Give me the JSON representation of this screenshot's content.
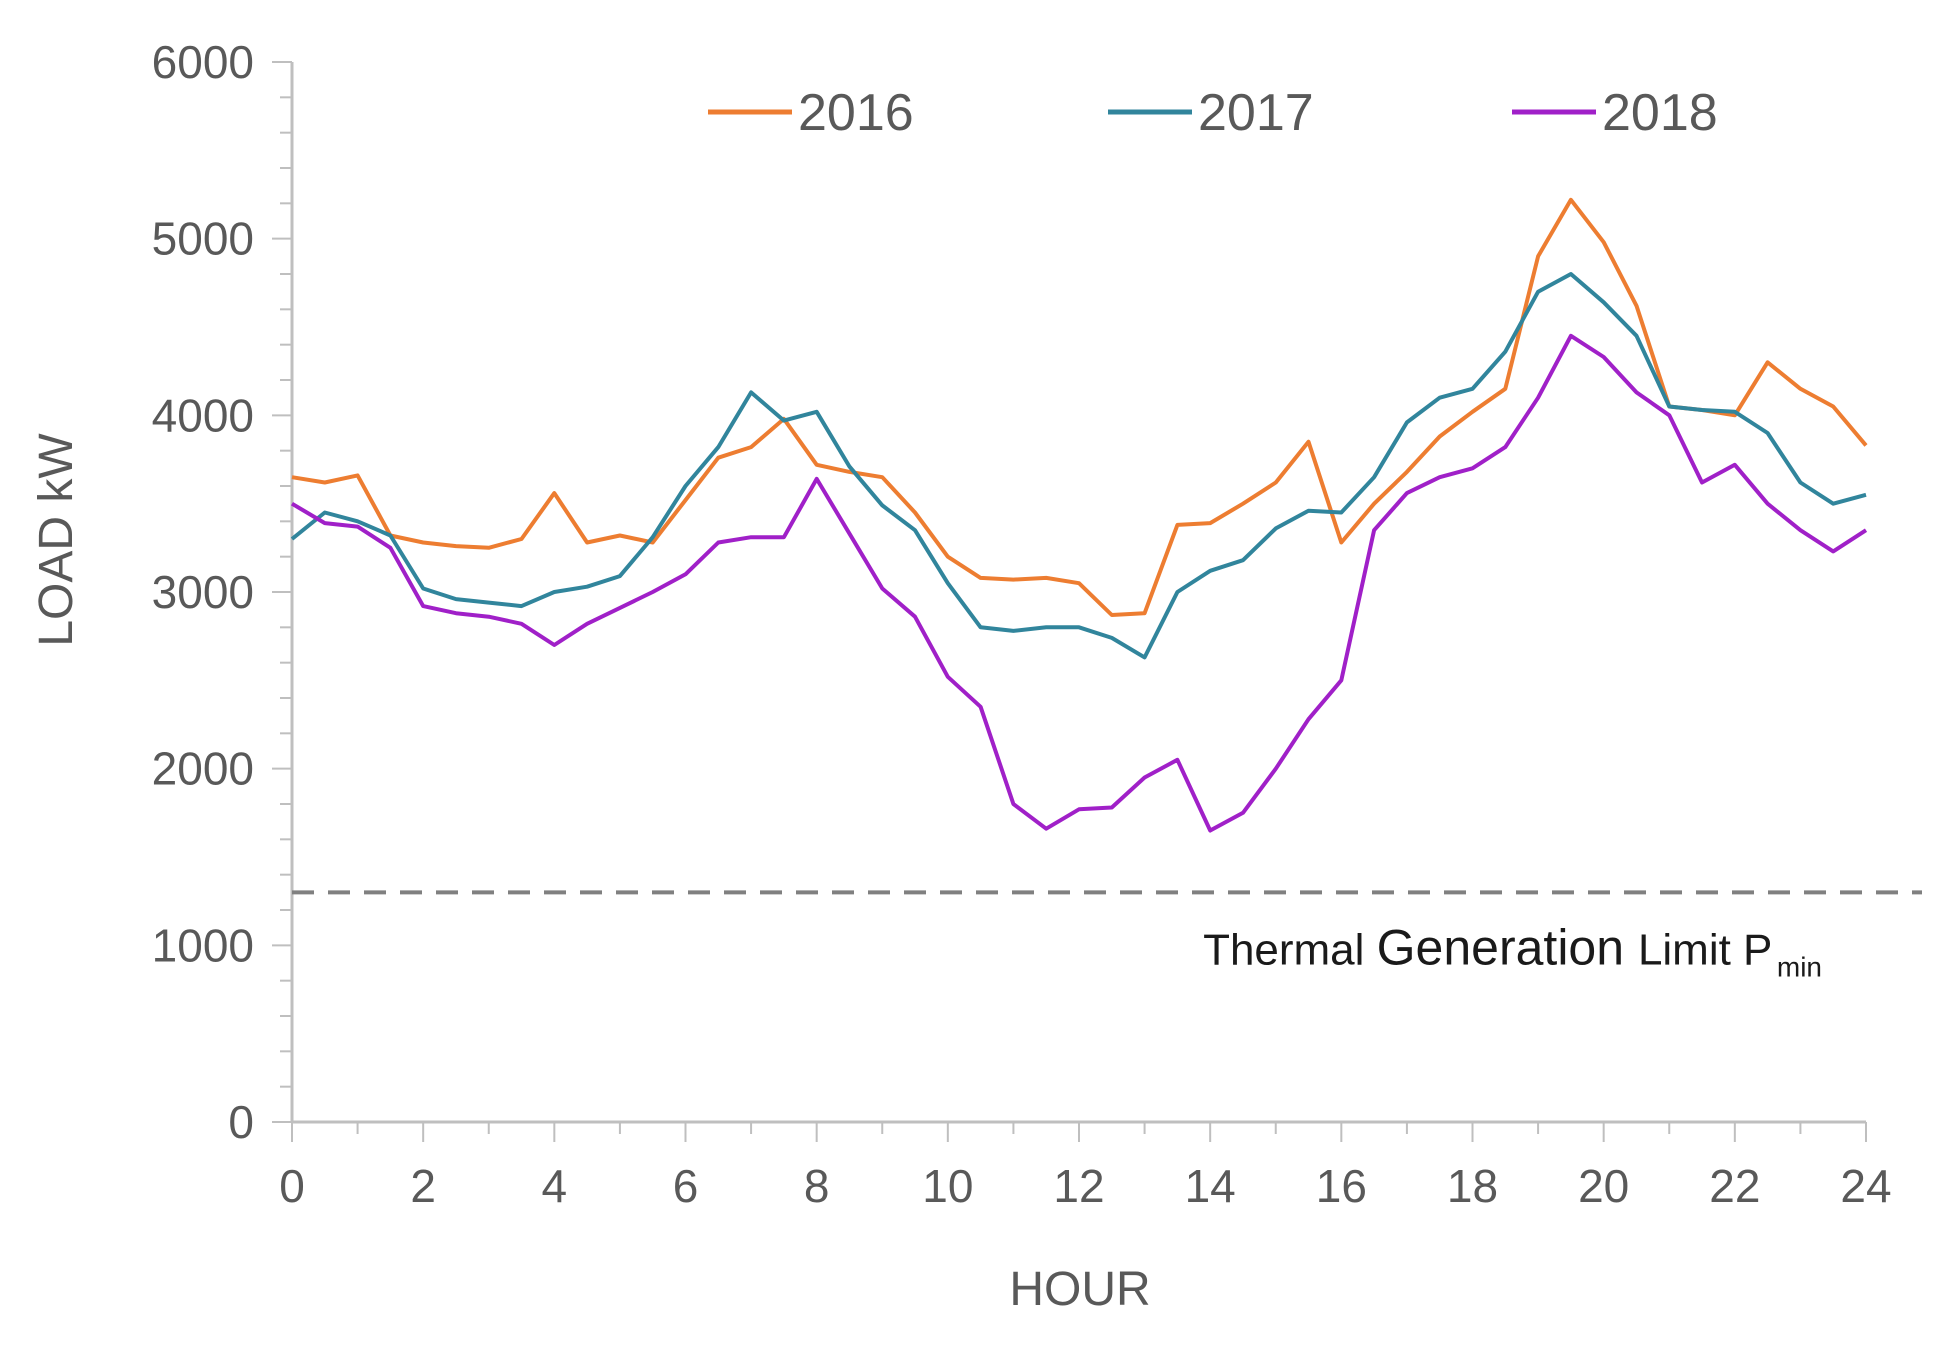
{
  "chart_data": {
    "type": "line",
    "title": "",
    "xlabel": "HOUR",
    "ylabel": "LOAD kW",
    "xlim": [
      0,
      24
    ],
    "ylim": [
      0,
      6000
    ],
    "x_ticks": [
      "0",
      "2",
      "4",
      "6",
      "8",
      "10",
      "12",
      "14",
      "16",
      "18",
      "20",
      "22",
      "24"
    ],
    "y_ticks": [
      "0",
      "1000",
      "2000",
      "3000",
      "4000",
      "5000",
      "6000"
    ],
    "grid": false,
    "legend_position": "top",
    "x": [
      0,
      0.5,
      1,
      1.5,
      2,
      2.5,
      3,
      3.5,
      4,
      4.5,
      5,
      5.5,
      6,
      6.5,
      7,
      7.5,
      8,
      8.5,
      9,
      9.5,
      10,
      10.5,
      11,
      11.5,
      12,
      12.5,
      13,
      13.5,
      14,
      14.5,
      15,
      15.5,
      16,
      16.5,
      17,
      17.5,
      18,
      18.5,
      19,
      19.5,
      20,
      20.5,
      21,
      21.5,
      22,
      22.5,
      23,
      23.5,
      24
    ],
    "series": [
      {
        "name": "2016",
        "color": "#ED7D31",
        "values": [
          3650,
          3620,
          3660,
          3320,
          3280,
          3260,
          3250,
          3300,
          3560,
          3280,
          3320,
          3280,
          3520,
          3760,
          3820,
          3980,
          3720,
          3680,
          3650,
          3450,
          3200,
          3080,
          3070,
          3080,
          3050,
          2870,
          2880,
          3380,
          3390,
          3500,
          3620,
          3850,
          3280,
          3500,
          3680,
          3880,
          4020,
          4150,
          4900,
          5220,
          4980,
          4620,
          4050,
          4030,
          4000,
          4300,
          4150,
          4050,
          3830
        ]
      },
      {
        "name": "2017",
        "color": "#31859C",
        "values": [
          3300,
          3450,
          3400,
          3320,
          3020,
          2960,
          2940,
          2920,
          3000,
          3030,
          3090,
          3310,
          3600,
          3820,
          4130,
          3970,
          4020,
          3710,
          3490,
          3350,
          3050,
          2800,
          2780,
          2800,
          2800,
          2740,
          2630,
          3000,
          3120,
          3180,
          3360,
          3460,
          3450,
          3650,
          3960,
          4100,
          4150,
          4360,
          4700,
          4800,
          4640,
          4450,
          4050,
          4030,
          4020,
          3900,
          3620,
          3500,
          3550
        ]
      },
      {
        "name": "2018",
        "color": "#A020C8",
        "values": [
          3500,
          3390,
          3370,
          3250,
          2920,
          2880,
          2860,
          2820,
          2700,
          2820,
          2910,
          3000,
          3100,
          3280,
          3310,
          3310,
          3640,
          3330,
          3020,
          2860,
          2520,
          2350,
          1800,
          1660,
          1770,
          1780,
          1950,
          2050,
          1650,
          1750,
          2000,
          2280,
          2500,
          3350,
          3560,
          3650,
          3700,
          3820,
          4100,
          4450,
          4330,
          4130,
          4000,
          3620,
          3720,
          3500,
          3350,
          3230,
          3350
        ]
      }
    ],
    "reference_lines": [
      {
        "value": 1300,
        "style": "dashed",
        "color": "#808080",
        "label": {
          "word1": "Thermal",
          "word2": "Generation",
          "word3": "Limit P",
          "subscript": "min"
        }
      }
    ]
  }
}
